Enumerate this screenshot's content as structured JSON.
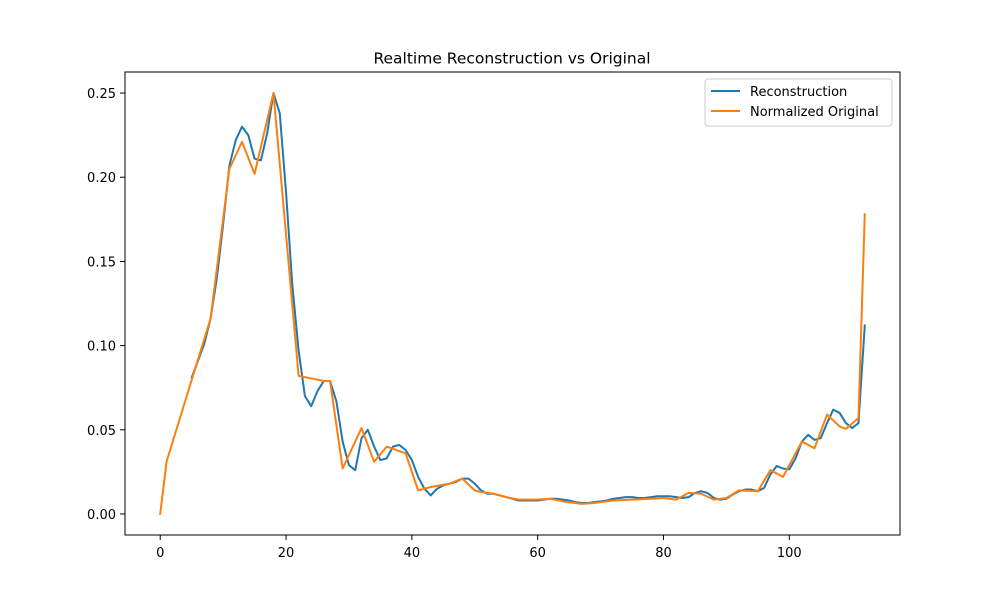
{
  "chart_data": {
    "type": "line",
    "title": "Realtime Reconstruction vs Original",
    "xlabel": "",
    "ylabel": "",
    "xlim": [
      -5.6,
      117.6
    ],
    "ylim": [
      -0.0125,
      0.2625
    ],
    "xticks": [
      0,
      20,
      40,
      60,
      80,
      100
    ],
    "yticks": [
      0.0,
      0.05,
      0.1,
      0.15,
      0.2,
      0.25
    ],
    "ytick_labels": [
      "0.00",
      "0.05",
      "0.10",
      "0.15",
      "0.20",
      "0.25"
    ],
    "grid": false,
    "legend_position": "top-right",
    "series": [
      {
        "name": "Reconstruction",
        "color": "#1f77b4",
        "points": [
          [
            5,
            0.081
          ],
          [
            6,
            0.091
          ],
          [
            7,
            0.101
          ],
          [
            8,
            0.116
          ],
          [
            9,
            0.14
          ],
          [
            10,
            0.172
          ],
          [
            11,
            0.207
          ],
          [
            12,
            0.222
          ],
          [
            13,
            0.23
          ],
          [
            14,
            0.225
          ],
          [
            15,
            0.211
          ],
          [
            16,
            0.21
          ],
          [
            17,
            0.226
          ],
          [
            18,
            0.25
          ],
          [
            19,
            0.238
          ],
          [
            20,
            0.191
          ],
          [
            21,
            0.136
          ],
          [
            22,
            0.097
          ],
          [
            23,
            0.07
          ],
          [
            24,
            0.064
          ],
          [
            25,
            0.073
          ],
          [
            26,
            0.079
          ],
          [
            27,
            0.079
          ],
          [
            28,
            0.067
          ],
          [
            29,
            0.043
          ],
          [
            30,
            0.029
          ],
          [
            31,
            0.026
          ],
          [
            32,
            0.045
          ],
          [
            33,
            0.05
          ],
          [
            34,
            0.04
          ],
          [
            35,
            0.032
          ],
          [
            36,
            0.033
          ],
          [
            37,
            0.04
          ],
          [
            38,
            0.041
          ],
          [
            39,
            0.038
          ],
          [
            40,
            0.032
          ],
          [
            41,
            0.022
          ],
          [
            42,
            0.015
          ],
          [
            43,
            0.011
          ],
          [
            44,
            0.015
          ],
          [
            45,
            0.017
          ],
          [
            46,
            0.018
          ],
          [
            47,
            0.019
          ],
          [
            48,
            0.021
          ],
          [
            49,
            0.021
          ],
          [
            50,
            0.018
          ],
          [
            51,
            0.014
          ],
          [
            52,
            0.012
          ],
          [
            53,
            0.012
          ],
          [
            54,
            0.011
          ],
          [
            55,
            0.01
          ],
          [
            56,
            0.009
          ],
          [
            57,
            0.008
          ],
          [
            58,
            0.008
          ],
          [
            59,
            0.008
          ],
          [
            60,
            0.008
          ],
          [
            61,
            0.0085
          ],
          [
            62,
            0.009
          ],
          [
            63,
            0.009
          ],
          [
            64,
            0.0085
          ],
          [
            65,
            0.008
          ],
          [
            66,
            0.007
          ],
          [
            67,
            0.0065
          ],
          [
            68,
            0.0065
          ],
          [
            69,
            0.007
          ],
          [
            70,
            0.0075
          ],
          [
            71,
            0.008
          ],
          [
            72,
            0.009
          ],
          [
            73,
            0.0095
          ],
          [
            74,
            0.01
          ],
          [
            75,
            0.01
          ],
          [
            76,
            0.0095
          ],
          [
            77,
            0.0095
          ],
          [
            78,
            0.01
          ],
          [
            79,
            0.0105
          ],
          [
            80,
            0.0105
          ],
          [
            81,
            0.0105
          ],
          [
            82,
            0.01
          ],
          [
            83,
            0.0095
          ],
          [
            84,
            0.01
          ],
          [
            85,
            0.0125
          ],
          [
            86,
            0.0135
          ],
          [
            87,
            0.0125
          ],
          [
            88,
            0.0095
          ],
          [
            89,
            0.0085
          ],
          [
            90,
            0.009
          ],
          [
            91,
            0.0115
          ],
          [
            92,
            0.0135
          ],
          [
            93,
            0.0145
          ],
          [
            94,
            0.0145
          ],
          [
            95,
            0.0135
          ],
          [
            96,
            0.0155
          ],
          [
            97,
            0.0235
          ],
          [
            98,
            0.0285
          ],
          [
            99,
            0.027
          ],
          [
            100,
            0.0265
          ],
          [
            101,
            0.033
          ],
          [
            102,
            0.043
          ],
          [
            103,
            0.047
          ],
          [
            104,
            0.044
          ],
          [
            105,
            0.045
          ],
          [
            106,
            0.054
          ],
          [
            107,
            0.062
          ],
          [
            108,
            0.06
          ],
          [
            109,
            0.054
          ],
          [
            110,
            0.051
          ],
          [
            111,
            0.054
          ],
          [
            112,
            0.112
          ]
        ]
      },
      {
        "name": "Normalized Original",
        "color": "#ff7f0e",
        "points": [
          [
            0,
            0.0
          ],
          [
            1,
            0.031
          ],
          [
            8,
            0.116
          ],
          [
            11,
            0.205
          ],
          [
            13,
            0.221
          ],
          [
            15,
            0.202
          ],
          [
            18,
            0.25
          ],
          [
            22,
            0.082
          ],
          [
            26,
            0.079
          ],
          [
            27,
            0.079
          ],
          [
            29,
            0.027
          ],
          [
            32,
            0.051
          ],
          [
            34,
            0.031
          ],
          [
            36,
            0.04
          ],
          [
            39,
            0.036
          ],
          [
            41,
            0.014
          ],
          [
            43,
            0.016
          ],
          [
            46,
            0.018
          ],
          [
            48,
            0.021
          ],
          [
            50,
            0.014
          ],
          [
            51,
            0.013
          ],
          [
            53,
            0.012
          ],
          [
            55,
            0.01
          ],
          [
            57,
            0.0085
          ],
          [
            60,
            0.0085
          ],
          [
            62,
            0.009
          ],
          [
            64,
            0.0075
          ],
          [
            67,
            0.006
          ],
          [
            69,
            0.0065
          ],
          [
            72,
            0.008
          ],
          [
            75,
            0.0085
          ],
          [
            78,
            0.009
          ],
          [
            80,
            0.0095
          ],
          [
            82,
            0.0085
          ],
          [
            84,
            0.0125
          ],
          [
            86,
            0.012
          ],
          [
            88,
            0.0085
          ],
          [
            90,
            0.0095
          ],
          [
            92,
            0.014
          ],
          [
            95,
            0.0135
          ],
          [
            97,
            0.026
          ],
          [
            99,
            0.022
          ],
          [
            102,
            0.043
          ],
          [
            104,
            0.039
          ],
          [
            106,
            0.059
          ],
          [
            108,
            0.052
          ],
          [
            109,
            0.0505
          ],
          [
            111,
            0.057
          ],
          [
            112,
            0.178
          ]
        ]
      }
    ]
  }
}
